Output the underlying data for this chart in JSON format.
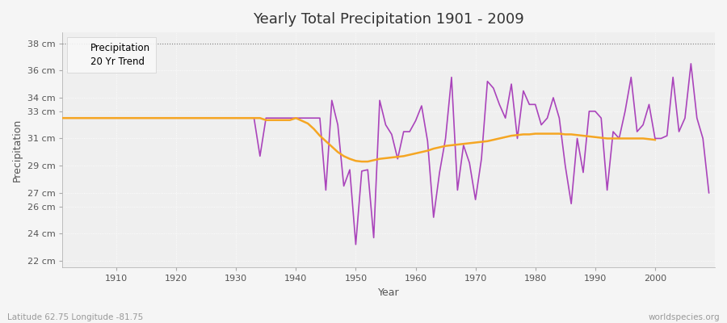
{
  "title": "Yearly Total Precipitation 1901 - 2009",
  "xlabel": "Year",
  "ylabel": "Precipitation",
  "bottom_left_label": "Latitude 62.75 Longitude -81.75",
  "bottom_right_label": "worldspecies.org",
  "ylim": [
    21.5,
    38.8
  ],
  "xlim": [
    1901,
    2010
  ],
  "yticks": [
    22,
    24,
    26,
    27,
    29,
    31,
    33,
    34,
    36,
    38
  ],
  "ytick_labels": [
    "22 cm",
    "24 cm",
    "26 cm",
    "27 cm",
    "29 cm",
    "31 cm",
    "33 cm",
    "34 cm",
    "36 cm",
    "38 cm"
  ],
  "xticks": [
    1910,
    1920,
    1930,
    1940,
    1950,
    1960,
    1970,
    1980,
    1990,
    2000
  ],
  "plot_bg_color": "#efefef",
  "fig_bg_color": "#f5f5f5",
  "precip_color": "#aa44bb",
  "trend_color": "#f5a623",
  "legend_labels": [
    "Precipitation",
    "20 Yr Trend"
  ],
  "years": [
    1901,
    1902,
    1903,
    1904,
    1905,
    1906,
    1907,
    1908,
    1909,
    1910,
    1911,
    1912,
    1913,
    1914,
    1915,
    1916,
    1917,
    1918,
    1919,
    1920,
    1921,
    1922,
    1923,
    1924,
    1925,
    1926,
    1927,
    1928,
    1929,
    1930,
    1931,
    1932,
    1933,
    1934,
    1935,
    1936,
    1937,
    1938,
    1939,
    1940,
    1941,
    1942,
    1943,
    1944,
    1945,
    1946,
    1947,
    1948,
    1949,
    1950,
    1951,
    1952,
    1953,
    1954,
    1955,
    1956,
    1957,
    1958,
    1959,
    1960,
    1961,
    1962,
    1963,
    1964,
    1965,
    1966,
    1967,
    1968,
    1969,
    1970,
    1971,
    1972,
    1973,
    1974,
    1975,
    1976,
    1977,
    1978,
    1979,
    1980,
    1981,
    1982,
    1983,
    1984,
    1985,
    1986,
    1987,
    1988,
    1989,
    1990,
    1991,
    1992,
    1993,
    1994,
    1995,
    1996,
    1997,
    1998,
    1999,
    2000,
    2001,
    2002,
    2003,
    2004,
    2005,
    2006,
    2007,
    2008,
    2009
  ],
  "precipitation": [
    32.5,
    32.5,
    32.5,
    32.5,
    32.5,
    32.5,
    32.5,
    32.5,
    32.5,
    32.5,
    32.5,
    32.5,
    32.5,
    32.5,
    32.5,
    32.5,
    32.5,
    32.5,
    32.5,
    32.5,
    32.5,
    32.5,
    32.5,
    32.5,
    32.5,
    32.5,
    32.5,
    32.5,
    32.5,
    32.5,
    32.5,
    32.5,
    32.5,
    29.7,
    32.5,
    32.5,
    32.5,
    32.5,
    32.5,
    32.5,
    32.5,
    32.5,
    32.5,
    32.5,
    27.2,
    33.8,
    32.0,
    27.5,
    28.7,
    23.2,
    28.6,
    28.7,
    23.7,
    33.8,
    32.0,
    31.3,
    29.5,
    31.5,
    31.5,
    32.3,
    33.4,
    30.8,
    25.2,
    28.5,
    31.0,
    35.5,
    27.2,
    30.5,
    29.2,
    26.5,
    29.5,
    35.2,
    34.7,
    33.5,
    32.5,
    35.0,
    31.0,
    34.5,
    33.5,
    33.5,
    32.0,
    32.5,
    34.0,
    32.5,
    29.0,
    26.2,
    31.0,
    28.5,
    33.0,
    33.0,
    32.5,
    27.2,
    31.5,
    31.0,
    33.0,
    35.5,
    31.5,
    32.0,
    33.5,
    31.0,
    31.0,
    31.2,
    35.5,
    31.5,
    32.5,
    36.5,
    32.5,
    31.0,
    27.0
  ],
  "trend": [
    32.5,
    32.5,
    32.5,
    32.5,
    32.5,
    32.5,
    32.5,
    32.5,
    32.5,
    32.5,
    32.5,
    32.5,
    32.5,
    32.5,
    32.5,
    32.5,
    32.5,
    32.5,
    32.5,
    32.5,
    32.5,
    32.5,
    32.5,
    32.5,
    32.5,
    32.5,
    32.5,
    32.5,
    32.5,
    32.5,
    32.5,
    32.5,
    32.5,
    32.5,
    32.35,
    32.35,
    32.35,
    32.35,
    32.35,
    32.5,
    32.3,
    32.1,
    31.7,
    31.2,
    30.8,
    30.4,
    30.0,
    29.7,
    29.5,
    29.35,
    29.3,
    29.3,
    29.4,
    29.5,
    29.55,
    29.6,
    29.65,
    29.7,
    29.8,
    29.9,
    30.0,
    30.1,
    30.25,
    30.35,
    30.45,
    30.5,
    30.55,
    30.6,
    30.65,
    30.7,
    30.75,
    30.8,
    30.9,
    31.0,
    31.1,
    31.2,
    31.25,
    31.3,
    31.3,
    31.35,
    31.35,
    31.35,
    31.35,
    31.35,
    31.3,
    31.3,
    31.25,
    31.2,
    31.15,
    31.1,
    31.05,
    31.0,
    31.0,
    31.0,
    31.0,
    31.0,
    31.0,
    31.0,
    30.95,
    30.9,
    null,
    null,
    null,
    null,
    null,
    null,
    null,
    null,
    null
  ]
}
